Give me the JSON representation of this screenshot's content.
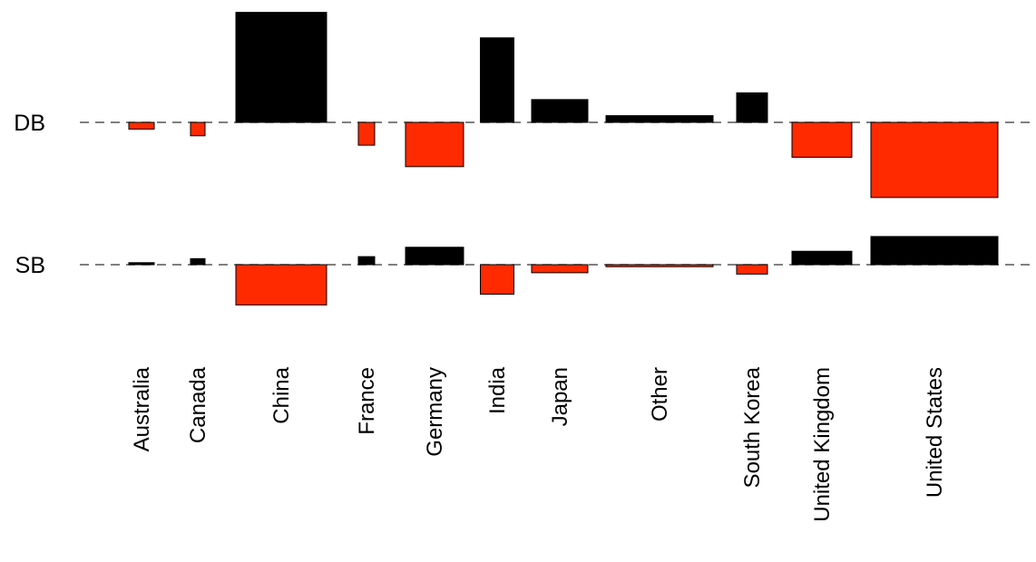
{
  "chart_data": {
    "type": "bar",
    "title": "",
    "xlabel": "",
    "ylabel": "",
    "rows": [
      "DB",
      "SB"
    ],
    "categories": [
      "Australia",
      "Canada",
      "China",
      "France",
      "Germany",
      "India",
      "Japan",
      "Other",
      "South Korea",
      "United Kingdom",
      "United States"
    ],
    "bar_widths": [
      28,
      16,
      100,
      18,
      64,
      37,
      62,
      118,
      34,
      66,
      140
    ],
    "series": [
      {
        "row": "DB",
        "values": [
          -5,
          -10,
          82,
          -17,
          -33,
          63,
          17,
          5,
          22,
          -26,
          -56
        ]
      },
      {
        "row": "SB",
        "values": [
          1.5,
          4.5,
          -30,
          6,
          13,
          -22,
          -6,
          -1.5,
          -7,
          10,
          21
        ]
      }
    ],
    "colors": {
      "positive": "#000000",
      "negative": "#ff2a00"
    },
    "legend": "none",
    "grid": false
  }
}
